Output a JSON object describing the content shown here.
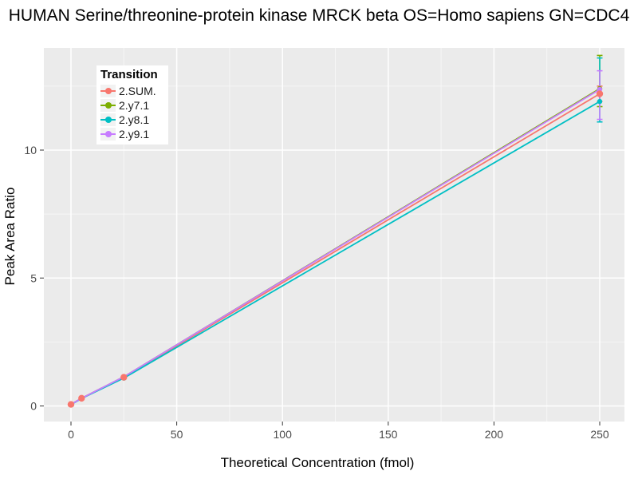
{
  "title": "HUMAN Serine/threonine-protein kinase MRCK beta OS=Homo sapiens GN=CDC4",
  "axes": {
    "x_label": "Theoretical Concentration (fmol)",
    "y_label": "Peak Area Ratio",
    "x_ticks": [
      0,
      50,
      100,
      150,
      200,
      250
    ],
    "y_ticks": [
      0,
      5,
      10
    ]
  },
  "legend": {
    "title": "Transition"
  },
  "style_colors": {
    "panel_background": "#EBEBEB",
    "major_gridline": "#FFFFFF",
    "minor_gridline": "rgba(255,255,255,0.55)",
    "tick_mark": "#333333",
    "tick_label": "#4D4D4D"
  },
  "chart_data": {
    "type": "line",
    "title": "HUMAN Serine/threonine-protein kinase MRCK beta OS=Homo sapiens GN=CDC4",
    "xlabel": "Theoretical Concentration (fmol)",
    "ylabel": "Peak Area Ratio",
    "xlim": [
      -13,
      262
    ],
    "ylim": [
      -0.6,
      14
    ],
    "grid": true,
    "legend_title": "Transition",
    "legend_position": "inside-top-left",
    "x": [
      0,
      5,
      25,
      250
    ],
    "series": [
      {
        "name": "2.SUM.",
        "color": "#F8766D",
        "values": [
          0.06,
          0.3,
          1.12,
          12.2
        ],
        "error_at_250": [
          11.9,
          12.5
        ],
        "point_radius": 4.2
      },
      {
        "name": "2.y7.1",
        "color": "#7CAE00",
        "values": [
          0.06,
          0.3,
          1.14,
          12.4
        ],
        "error_at_250": [
          11.7,
          13.7
        ],
        "point_radius": 3.2
      },
      {
        "name": "2.y8.1",
        "color": "#00BFC4",
        "values": [
          0.05,
          0.29,
          1.09,
          11.9
        ],
        "error_at_250": [
          11.1,
          13.6
        ],
        "point_radius": 3.2
      },
      {
        "name": "2.y9.1",
        "color": "#C77CFF",
        "values": [
          0.06,
          0.3,
          1.14,
          12.37
        ],
        "error_at_250": [
          11.2,
          13.1
        ],
        "point_radius": 3.2
      }
    ]
  }
}
